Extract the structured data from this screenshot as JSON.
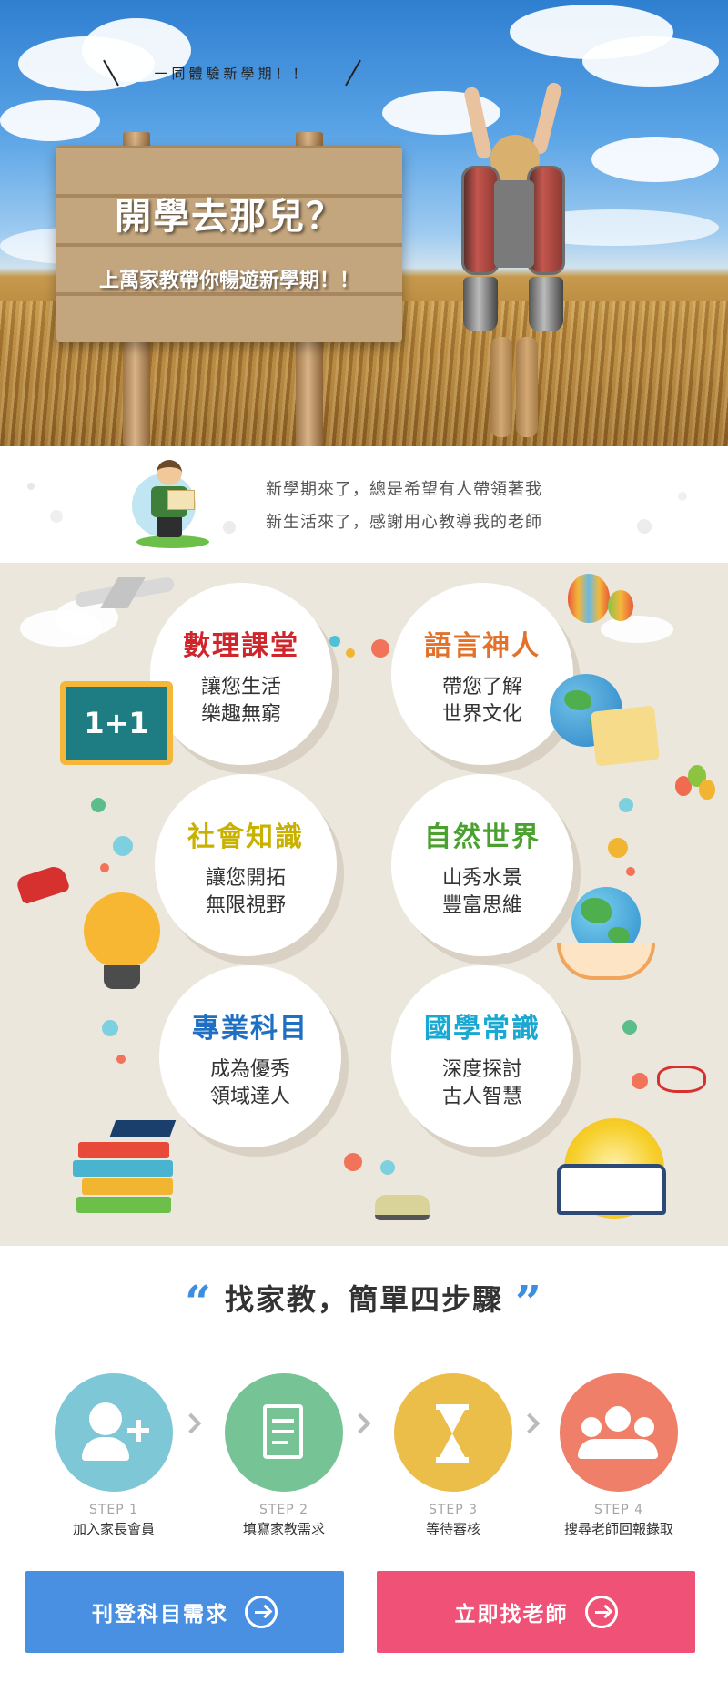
{
  "hero": {
    "slogan_top": "一同體驗新學期！！",
    "sign_title": "開學去那兒？",
    "sign_subtitle": "上萬家教帶你暢遊新學期！！"
  },
  "intro": {
    "line1": "新學期來了，總是希望有人帶領著我",
    "line2": "新生活來了，感謝用心教導我的老師"
  },
  "categories": [
    {
      "title": "數理課堂",
      "desc1": "讓您生活",
      "desc2": "樂趣無窮",
      "color": "#d0252a",
      "icon": "chalkboard-icon",
      "icon_text": "1+1"
    },
    {
      "title": "語言神人",
      "desc1": "帶您了解",
      "desc2": "世界文化",
      "color": "#e2712a",
      "icon": "globe-scroll-icon"
    },
    {
      "title": "社會知識",
      "desc1": "讓您開拓",
      "desc2": "無限視野",
      "color": "#c9b100",
      "icon": "lightbulb-icon"
    },
    {
      "title": "自然世界",
      "desc1": "山秀水景",
      "desc2": "豐富思維",
      "color": "#4aa12f",
      "icon": "earth-hands-icon"
    },
    {
      "title": "專業科目",
      "desc1": "成為優秀",
      "desc2": "領域達人",
      "color": "#1f6fc2",
      "icon": "graduation-books-icon"
    },
    {
      "title": "國學常識",
      "desc1": "深度探討",
      "desc2": "古人智慧",
      "color": "#19a8d1",
      "icon": "open-book-icon"
    }
  ],
  "steps_section": {
    "title": "找家教，簡單四步驟"
  },
  "steps": [
    {
      "num": "STEP 1",
      "label": "加入家長會員",
      "color": "#7ec7d6",
      "icon": "add-user-icon"
    },
    {
      "num": "STEP 2",
      "label": "填寫家教需求",
      "color": "#76c496",
      "icon": "form-pen-icon"
    },
    {
      "num": "STEP 3",
      "label": "等待審核",
      "color": "#ebbd49",
      "icon": "hourglass-icon"
    },
    {
      "num": "STEP 4",
      "label": "搜尋老師回報錄取",
      "color": "#ef7f69",
      "icon": "users-group-icon"
    }
  ],
  "cta": {
    "post_label": "刊登科目需求",
    "post_color": "#4a90e2",
    "find_label": "立即找老師",
    "find_color": "#f05176"
  }
}
